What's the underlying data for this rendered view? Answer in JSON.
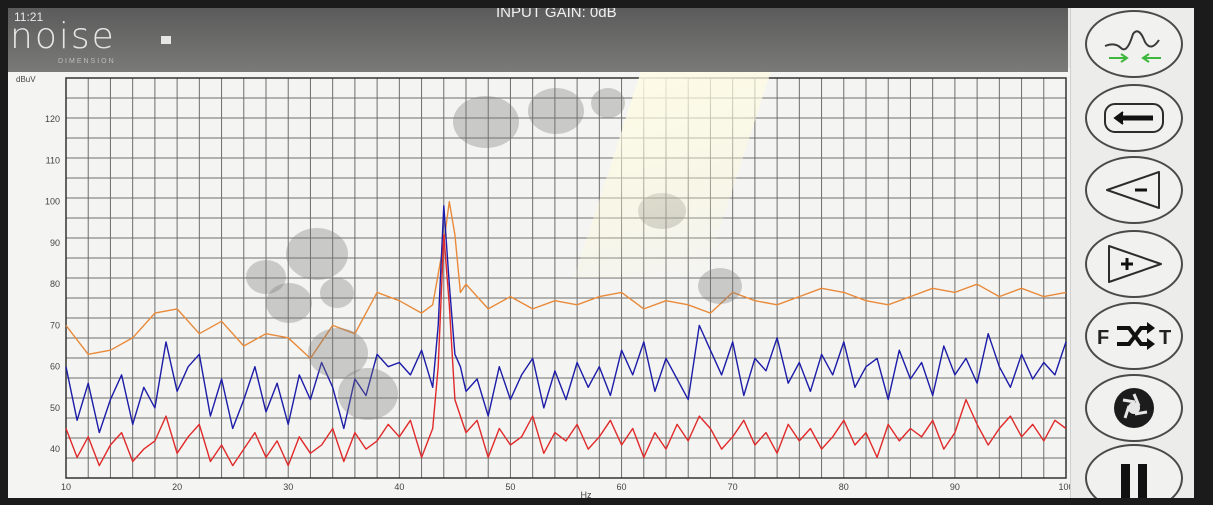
{
  "header": {
    "time": "11:21",
    "brand": "noise",
    "brand_sub": "DIMENSION",
    "input_gain": "INPUT GAIN: 0dB"
  },
  "chart_data": {
    "type": "line",
    "title": "",
    "xlabel": "Hz",
    "ylabel": "dBuV",
    "xlim": [
      10,
      100
    ],
    "ylim": [
      33,
      130
    ],
    "x_ticks": [
      10,
      20,
      30,
      40,
      50,
      60,
      70,
      80,
      90,
      100
    ],
    "y_ticks": [
      40,
      50,
      60,
      70,
      80,
      90,
      100,
      110,
      120
    ],
    "grid": true,
    "series": [
      {
        "color": "#e88a3a",
        "x": [
          10,
          12,
          14,
          16,
          18,
          20,
          22,
          24,
          26,
          28,
          30,
          32,
          34,
          36,
          38,
          40,
          42,
          43,
          44,
          44.5,
          45,
          45.5,
          46,
          48,
          50,
          52,
          54,
          56,
          58,
          60,
          62,
          64,
          66,
          68,
          70,
          72,
          74,
          76,
          78,
          80,
          82,
          84,
          86,
          88,
          90,
          92,
          94,
          96,
          98,
          100
        ],
        "y": [
          70,
          63,
          64,
          67,
          73,
          74,
          68,
          71,
          65,
          68,
          67,
          62,
          70,
          68,
          78,
          76,
          73,
          75,
          90,
          100,
          92,
          78,
          80,
          74,
          77,
          74,
          76,
          75,
          77,
          78,
          74,
          76,
          75,
          73,
          78,
          76,
          75,
          77,
          79,
          78,
          76,
          75,
          77,
          79,
          78,
          80,
          77,
          79,
          77,
          78
        ]
      },
      {
        "color": "#1c1ca8",
        "x": [
          10,
          11,
          12,
          13,
          14,
          15,
          16,
          17,
          18,
          19,
          20,
          21,
          22,
          23,
          24,
          25,
          26,
          27,
          28,
          29,
          30,
          31,
          32,
          33,
          34,
          35,
          36,
          37,
          38,
          39,
          40,
          41,
          42,
          43,
          43.5,
          44,
          44.5,
          45,
          45.5,
          46,
          47,
          48,
          49,
          50,
          51,
          52,
          53,
          54,
          55,
          56,
          57,
          58,
          59,
          60,
          61,
          62,
          63,
          64,
          65,
          66,
          67,
          68,
          69,
          70,
          71,
          72,
          73,
          74,
          75,
          76,
          77,
          78,
          79,
          80,
          81,
          82,
          83,
          84,
          85,
          86,
          87,
          88,
          89,
          90,
          91,
          92,
          93,
          94,
          95,
          96,
          97,
          98,
          99,
          100
        ],
        "y": [
          60,
          47,
          56,
          44,
          52,
          58,
          46,
          55,
          50,
          66,
          54,
          60,
          63,
          48,
          57,
          45,
          52,
          60,
          49,
          56,
          46,
          58,
          52,
          61,
          55,
          45,
          57,
          53,
          63,
          60,
          61,
          58,
          64,
          55,
          70,
          99,
          80,
          63,
          60,
          54,
          57,
          48,
          60,
          52,
          58,
          62,
          50,
          59,
          52,
          61,
          55,
          60,
          53,
          64,
          58,
          66,
          54,
          62,
          57,
          52,
          70,
          64,
          58,
          66,
          53,
          62,
          59,
          67,
          56,
          61,
          54,
          63,
          58,
          66,
          55,
          60,
          62,
          52,
          64,
          57,
          61,
          53,
          65,
          58,
          62,
          56,
          68,
          60,
          55,
          63,
          57,
          61,
          58,
          66
        ]
      },
      {
        "color": "#e02a2a",
        "x": [
          10,
          11,
          12,
          13,
          14,
          15,
          16,
          17,
          18,
          19,
          20,
          21,
          22,
          23,
          24,
          25,
          26,
          27,
          28,
          29,
          30,
          31,
          32,
          33,
          34,
          35,
          36,
          37,
          38,
          39,
          40,
          41,
          42,
          43,
          43.5,
          44,
          44.5,
          45,
          45.5,
          46,
          47,
          48,
          49,
          50,
          51,
          52,
          53,
          54,
          55,
          56,
          57,
          58,
          59,
          60,
          61,
          62,
          63,
          64,
          65,
          66,
          67,
          68,
          69,
          70,
          71,
          72,
          73,
          74,
          75,
          76,
          77,
          78,
          79,
          80,
          81,
          82,
          83,
          84,
          85,
          86,
          87,
          88,
          89,
          90,
          91,
          92,
          93,
          94,
          95,
          96,
          97,
          98,
          99,
          100
        ],
        "y": [
          45,
          38,
          43,
          36,
          41,
          44,
          37,
          40,
          42,
          48,
          39,
          43,
          46,
          37,
          41,
          36,
          40,
          44,
          38,
          42,
          36,
          43,
          39,
          41,
          45,
          37,
          44,
          40,
          42,
          46,
          43,
          47,
          38,
          45,
          60,
          92,
          75,
          52,
          48,
          44,
          47,
          38,
          45,
          41,
          43,
          48,
          39,
          44,
          42,
          46,
          40,
          43,
          47,
          41,
          45,
          38,
          44,
          40,
          46,
          42,
          48,
          45,
          40,
          43,
          47,
          41,
          44,
          39,
          46,
          42,
          45,
          40,
          43,
          47,
          41,
          44,
          38,
          46,
          42,
          45,
          43,
          47,
          40,
          44,
          52,
          46,
          41,
          45,
          48,
          43,
          46,
          42,
          47,
          45
        ]
      }
    ]
  },
  "sidebar": {
    "icons": [
      "trace-compare-icon",
      "back-arrow-icon",
      "minus-triangle-icon",
      "plus-triangle-icon",
      "shuffle-f-t-icon",
      "camera-shutter-icon",
      "pause-icon"
    ],
    "shuffle_left": "F",
    "shuffle_right": "T"
  }
}
